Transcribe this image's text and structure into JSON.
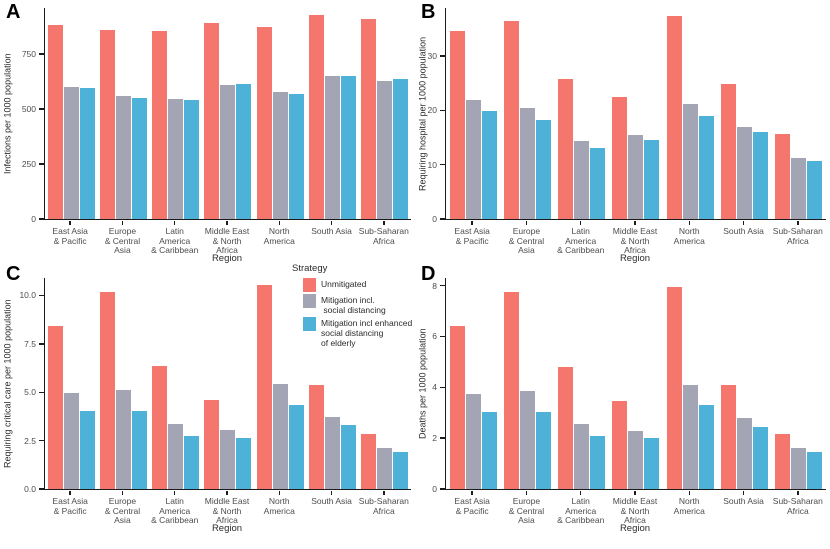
{
  "figure": {
    "background": "#ffffff",
    "legend": {
      "title": "Strategy",
      "entries": [
        {
          "label": "Unmitigated",
          "color": "#F5766C"
        },
        {
          "label": "Mitigation incl.\n social distancing",
          "color": "#A3A5B4"
        },
        {
          "label": "Mitigation incl enhanced\nsocial distancing\nof elderly",
          "color": "#4DB1D8"
        }
      ]
    }
  },
  "chart_data": [
    {
      "panel": "A",
      "type": "bar",
      "title": "",
      "ylabel": "Infections per 1000 population",
      "xlabel": "Region",
      "ylim": [
        0,
        960
      ],
      "ytick_values": [
        0,
        250,
        500,
        750
      ],
      "ytick_labels": [
        "0",
        "250",
        "500",
        "750"
      ],
      "grid": false,
      "legend_position": "shared-center",
      "categories": [
        "East Asia\n& Pacific",
        "Europe\n& Central\nAsia",
        "Latin\nAmerica\n& Caribbean",
        "Middle East\n& North\nAfrica",
        "North\nAmerica",
        "South Asia",
        "Sub-Saharan\nAfrica"
      ],
      "series": [
        {
          "name": "Unmitigated",
          "color": "#F5766C",
          "values": [
            885,
            858,
            857,
            893,
            872,
            928,
            912
          ]
        },
        {
          "name": "Mitigation incl. social distancing",
          "color": "#A3A5B4",
          "values": [
            600,
            560,
            548,
            610,
            580,
            650,
            630
          ]
        },
        {
          "name": "Mitigation incl enhanced social distancing of elderly",
          "color": "#4DB1D8",
          "values": [
            596,
            551,
            542,
            613,
            567,
            651,
            636
          ]
        }
      ]
    },
    {
      "panel": "B",
      "type": "bar",
      "title": "",
      "ylabel": "Requiring hospital per 1000 population",
      "xlabel": "Region",
      "ylim": [
        0,
        38.8
      ],
      "ytick_values": [
        0,
        10,
        20,
        30
      ],
      "ytick_labels": [
        "0",
        "10",
        "20",
        "30"
      ],
      "grid": false,
      "legend_position": "shared-center",
      "categories": [
        "East Asia\n& Pacific",
        "Europe\n& Central\nAsia",
        "Latin\nAmerica\n& Caribbean",
        "Middle East\n& North\nAfrica",
        "North\nAmerica",
        "South Asia",
        "Sub-Saharan\nAfrica"
      ],
      "series": [
        {
          "name": "Unmitigated",
          "color": "#F5766C",
          "values": [
            34.5,
            36.5,
            25.8,
            22.4,
            37.3,
            24.8,
            15.6
          ]
        },
        {
          "name": "Mitigation incl. social distancing",
          "color": "#A3A5B4",
          "values": [
            21.8,
            20.5,
            14.4,
            15.4,
            21.2,
            17.0,
            11.2
          ]
        },
        {
          "name": "Mitigation incl enhanced social distancing of elderly",
          "color": "#4DB1D8",
          "values": [
            19.9,
            18.2,
            13.0,
            14.5,
            19.0,
            16.0,
            10.7
          ]
        }
      ]
    },
    {
      "panel": "C",
      "type": "bar",
      "title": "",
      "ylabel": "Requiring critical care per 1000 population",
      "xlabel": "Region",
      "ylim": [
        0,
        10.9
      ],
      "ytick_values": [
        0,
        2.5,
        5,
        7.5,
        10
      ],
      "ytick_labels": [
        "0.0",
        "2.5",
        "5.0",
        "7.5",
        "10.0"
      ],
      "grid": false,
      "legend_position": "shared-center",
      "categories": [
        "East Asia\n& Pacific",
        "Europe\n& Central\nAsia",
        "Latin\nAmerica\n& Caribbean",
        "Middle East\n& North\nAfrica",
        "North\nAmerica",
        "South Asia",
        "Sub-Saharan\nAfrica"
      ],
      "series": [
        {
          "name": "Unmitigated",
          "color": "#F5766C",
          "values": [
            8.4,
            10.2,
            6.35,
            4.6,
            10.55,
            5.4,
            2.85
          ]
        },
        {
          "name": "Mitigation incl. social distancing",
          "color": "#A3A5B4",
          "values": [
            4.95,
            5.1,
            3.35,
            3.05,
            5.45,
            3.7,
            2.1
          ]
        },
        {
          "name": "Mitigation incl enhanced social distancing of elderly",
          "color": "#4DB1D8",
          "values": [
            4.05,
            4.05,
            2.75,
            2.65,
            4.35,
            3.3,
            1.9
          ]
        }
      ]
    },
    {
      "panel": "D",
      "type": "bar",
      "title": "",
      "ylabel": "Deaths per 1000 population",
      "xlabel": "Region",
      "ylim": [
        0,
        8.3
      ],
      "ytick_values": [
        0,
        2,
        4,
        6,
        8
      ],
      "ytick_labels": [
        "0",
        "2",
        "4",
        "6",
        "8"
      ],
      "grid": false,
      "legend_position": "shared-center",
      "categories": [
        "East Asia\n& Pacific",
        "Europe\n& Central\nAsia",
        "Latin\nAmerica\n& Caribbean",
        "Middle East\n& North\nAfrica",
        "North\nAmerica",
        "South Asia",
        "Sub-Saharan\nAfrica"
      ],
      "series": [
        {
          "name": "Unmitigated",
          "color": "#F5766C",
          "values": [
            6.4,
            7.75,
            4.8,
            3.45,
            7.95,
            4.1,
            2.15
          ]
        },
        {
          "name": "Mitigation incl. social distancing",
          "color": "#A3A5B4",
          "values": [
            3.75,
            3.85,
            2.55,
            2.3,
            4.1,
            2.8,
            1.6
          ]
        },
        {
          "name": "Mitigation incl enhanced social distancing of elderly",
          "color": "#4DB1D8",
          "values": [
            3.05,
            3.05,
            2.1,
            2.0,
            3.3,
            2.45,
            1.45
          ]
        }
      ]
    }
  ]
}
